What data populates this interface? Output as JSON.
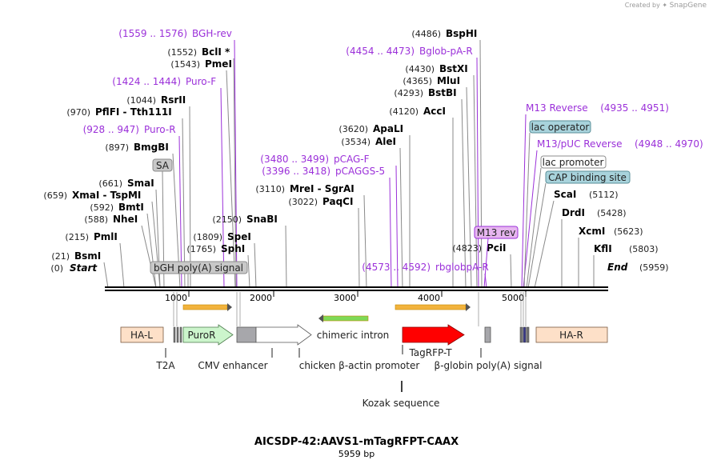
{
  "credit": {
    "prefix": "Created by",
    "brand": "SnapGene"
  },
  "title": "AICSDP-42:AAVS1-mTagRFPT-CAAX",
  "length_label": "5959 bp",
  "sites": [
    {
      "pos": "(1559 .. 1576)",
      "name": "BGH-rev",
      "kind": "primer"
    },
    {
      "pos": "(1552)",
      "name": "BclI *",
      "kind": "enzyme"
    },
    {
      "pos": "(1543)",
      "name": "PmeI",
      "kind": "enzyme"
    },
    {
      "pos": "(1424 .. 1444)",
      "name": "Puro-F",
      "kind": "primer"
    },
    {
      "pos": "(1044)",
      "name": "RsrII",
      "kind": "enzyme"
    },
    {
      "pos": "(970)",
      "name": "PflFI - Tth111I",
      "kind": "enzyme"
    },
    {
      "pos": "(928 .. 947)",
      "name": "Puro-R",
      "kind": "primer"
    },
    {
      "pos": "(897)",
      "name": "BmgBI",
      "kind": "enzyme"
    },
    {
      "pos": "",
      "name": "SA",
      "kind": "featbox"
    },
    {
      "pos": "(661)",
      "name": "SmaI",
      "kind": "enzyme"
    },
    {
      "pos": "(659)",
      "name": "XmaI - TspMI",
      "kind": "enzyme"
    },
    {
      "pos": "(592)",
      "name": "BmtI",
      "kind": "enzyme"
    },
    {
      "pos": "(588)",
      "name": "NheI",
      "kind": "enzyme"
    },
    {
      "pos": "(215)",
      "name": "PmlI",
      "kind": "enzyme"
    },
    {
      "pos": "(21)",
      "name": "BsmI",
      "kind": "enzyme"
    },
    {
      "pos": "(0)",
      "name": "Start",
      "kind": "end"
    },
    {
      "pos": "",
      "name": "bGH poly(A) signal",
      "kind": "featbox"
    },
    {
      "pos": "(2150)",
      "name": "SnaBI",
      "kind": "enzyme"
    },
    {
      "pos": "(1809)",
      "name": "SpeI",
      "kind": "enzyme"
    },
    {
      "pos": "(1765)",
      "name": "SphI",
      "kind": "enzyme"
    },
    {
      "pos": "(3620)",
      "name": "ApaLI",
      "kind": "enzyme"
    },
    {
      "pos": "(3534)",
      "name": "AleI",
      "kind": "enzyme"
    },
    {
      "pos": "(3480 .. 3499)",
      "name": "pCAG-F",
      "kind": "primer"
    },
    {
      "pos": "(3396 .. 3418)",
      "name": "pCAGGS-5",
      "kind": "primer"
    },
    {
      "pos": "(3110)",
      "name": "MreI - SgrAI",
      "kind": "enzyme"
    },
    {
      "pos": "(3022)",
      "name": "PaqCI",
      "kind": "enzyme"
    },
    {
      "pos": "(4486)",
      "name": "BspHI",
      "kind": "enzyme"
    },
    {
      "pos": "(4454 .. 4473)",
      "name": "Bglob-pA-R",
      "kind": "primer"
    },
    {
      "pos": "(4430)",
      "name": "BstXI",
      "kind": "enzyme"
    },
    {
      "pos": "(4365)",
      "name": "MluI",
      "kind": "enzyme"
    },
    {
      "pos": "(4293)",
      "name": "BstBI",
      "kind": "enzyme"
    },
    {
      "pos": "(4120)",
      "name": "AccI",
      "kind": "enzyme"
    },
    {
      "pos": "",
      "name": "M13 rev",
      "kind": "featbox"
    },
    {
      "pos": "(4823)",
      "name": "PciI",
      "kind": "enzyme"
    },
    {
      "pos": "(4573 .. 4592)",
      "name": "rbglobpA-R",
      "kind": "primer"
    },
    {
      "pos": "(4935 .. 4951)",
      "name": "M13 Reverse",
      "kind": "primer"
    },
    {
      "pos": "",
      "name": "lac operator",
      "kind": "featbox"
    },
    {
      "pos": "(4948 .. 4970)",
      "name": "M13/pUC Reverse",
      "kind": "primer"
    },
    {
      "pos": "",
      "name": "lac promoter",
      "kind": "featbox"
    },
    {
      "pos": "",
      "name": "CAP binding site",
      "kind": "featbox"
    },
    {
      "pos": "(5112)",
      "name": "ScaI",
      "kind": "enzyme"
    },
    {
      "pos": "(5428)",
      "name": "DrdI",
      "kind": "enzyme"
    },
    {
      "pos": "(5623)",
      "name": "XcmI",
      "kind": "enzyme"
    },
    {
      "pos": "(5803)",
      "name": "KflI",
      "kind": "enzyme"
    },
    {
      "pos": "(5959)",
      "name": "End",
      "kind": "end"
    }
  ],
  "ticks": [
    "1000",
    "2000",
    "3000",
    "4000",
    "5000"
  ],
  "features": [
    {
      "name": "HA-L"
    },
    {
      "name": "PuroR"
    },
    {
      "name": "HA-R"
    },
    {
      "name": "chimeric intron"
    },
    {
      "name": "TagRFP-T"
    },
    {
      "name": "T2A"
    },
    {
      "name": "CMV enhancer"
    },
    {
      "name": "chicken β-actin promoter"
    },
    {
      "name": "β-globin poly(A) signal"
    },
    {
      "name": "Kozak sequence"
    }
  ],
  "colors": {
    "primer": "#9b30d9",
    "primer_box": "#e7b6f0",
    "teal_box": "#a8d3dc",
    "gray_box": "#c8c8c8",
    "ha_fill": "#fde0c8",
    "puro_fill": "#ccf5cc",
    "rfp_fill": "#ff0000",
    "backbone": "#000000"
  }
}
